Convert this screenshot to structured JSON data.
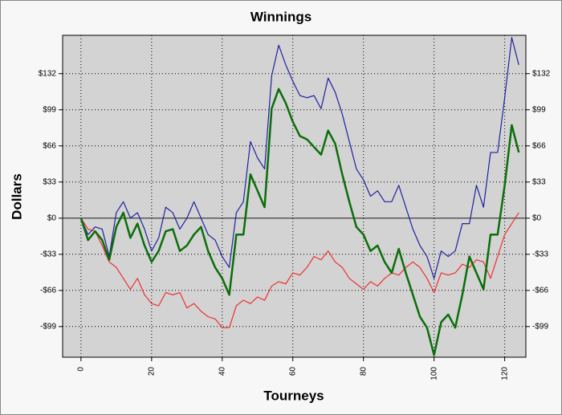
{
  "chart_data": {
    "type": "line",
    "title": "Winnings",
    "x_label": "Tourneys",
    "y_label": "Dollars",
    "x": [
      0,
      2,
      4,
      6,
      8,
      10,
      12,
      14,
      16,
      18,
      20,
      22,
      24,
      26,
      28,
      30,
      32,
      34,
      36,
      38,
      40,
      42,
      44,
      46,
      48,
      50,
      52,
      54,
      56,
      58,
      60,
      62,
      64,
      66,
      68,
      70,
      72,
      74,
      76,
      78,
      80,
      82,
      84,
      86,
      88,
      90,
      92,
      94,
      96,
      98,
      100,
      102,
      104,
      106,
      108,
      110,
      112,
      114,
      116,
      118,
      120,
      122,
      124
    ],
    "series": [
      {
        "color": "#2020a0",
        "width": 1.2,
        "values": [
          0,
          -15,
          -8,
          -10,
          -35,
          5,
          15,
          0,
          5,
          -10,
          -30,
          -18,
          10,
          5,
          -10,
          0,
          15,
          0,
          -15,
          -20,
          -35,
          -45,
          5,
          15,
          70,
          55,
          45,
          130,
          158,
          140,
          125,
          112,
          110,
          112,
          100,
          128,
          115,
          95,
          70,
          45,
          35,
          20,
          25,
          15,
          15,
          30,
          10,
          -10,
          -25,
          -35,
          -55,
          -30,
          -35,
          -30,
          -5,
          -5,
          30,
          10,
          60,
          60,
          110,
          165,
          140
        ]
      },
      {
        "color": "#ee3030",
        "width": 1.2,
        "values": [
          0,
          -10,
          -12,
          -25,
          -40,
          -45,
          -55,
          -65,
          -55,
          -70,
          -78,
          -80,
          -68,
          -70,
          -68,
          -82,
          -78,
          -85,
          -90,
          -92,
          -100,
          -100,
          -80,
          -75,
          -78,
          -72,
          -75,
          -62,
          -58,
          -60,
          -50,
          -52,
          -45,
          -35,
          -38,
          -30,
          -40,
          -45,
          -55,
          -60,
          -65,
          -58,
          -62,
          -55,
          -50,
          -52,
          -45,
          -40,
          -45,
          -55,
          -68,
          -50,
          -52,
          -50,
          -42,
          -45,
          -38,
          -40,
          -55,
          -35,
          -15,
          -5,
          5
        ]
      },
      {
        "color": "#0a6e0a",
        "width": 2.5,
        "values": [
          0,
          -20,
          -12,
          -20,
          -38,
          -8,
          5,
          -18,
          -5,
          -25,
          -40,
          -30,
          -12,
          -10,
          -30,
          -25,
          -15,
          -8,
          -30,
          -45,
          -55,
          -70,
          -15,
          -15,
          40,
          25,
          10,
          100,
          118,
          105,
          88,
          75,
          72,
          65,
          58,
          80,
          68,
          40,
          15,
          -8,
          -15,
          -30,
          -25,
          -40,
          -50,
          -28,
          -50,
          -70,
          -90,
          -100,
          -125,
          -95,
          -88,
          -100,
          -70,
          -35,
          -50,
          -65,
          -15,
          -15,
          30,
          85,
          60
        ]
      }
    ],
    "xlim": [
      -5.2,
      126
    ],
    "ylim": [
      -127,
      167
    ],
    "xticks": [
      0,
      20,
      40,
      60,
      80,
      100,
      120
    ],
    "yticks": [
      {
        "value": -99,
        "label": "-$99"
      },
      {
        "value": -66,
        "label": "-$66"
      },
      {
        "value": -33,
        "label": "-$33"
      },
      {
        "value": 0,
        "label": "$0"
      },
      {
        "value": 33,
        "label": "$33"
      },
      {
        "value": 66,
        "label": "$66"
      },
      {
        "value": 99,
        "label": "$99"
      },
      {
        "value": 132,
        "label": "$132"
      }
    ],
    "grid": true
  }
}
